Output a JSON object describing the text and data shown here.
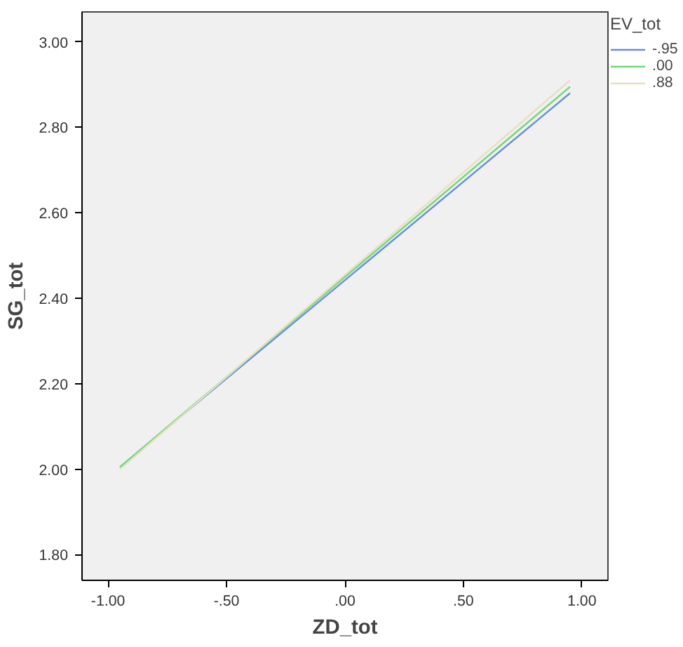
{
  "chart_data": {
    "type": "line",
    "xlabel": "ZD_tot",
    "ylabel": "SG_tot",
    "legend_title": "EV_tot",
    "legend": "top right",
    "x": [
      -0.95,
      0.95
    ],
    "xlim": [
      -1.11,
      1.11
    ],
    "ylim": [
      1.74,
      3.07
    ],
    "xticks": [
      {
        "value": -1,
        "label": "-1.00"
      },
      {
        "value": -0.5,
        "label": "-.50"
      },
      {
        "value": 0,
        "label": ".00"
      },
      {
        "value": 0.5,
        "label": ".50"
      },
      {
        "value": 1,
        "label": "1.00"
      }
    ],
    "yticks": [
      {
        "value": 1.8,
        "label": "1.80"
      },
      {
        "value": 2.0,
        "label": "2.00"
      },
      {
        "value": 2.2,
        "label": "2.20"
      },
      {
        "value": 2.4,
        "label": "2.40"
      },
      {
        "value": 2.6,
        "label": "2.60"
      },
      {
        "value": 2.8,
        "label": "2.80"
      },
      {
        "value": 3.0,
        "label": "3.00"
      }
    ],
    "series": [
      {
        "name": "-.95",
        "color": "#6a8fd6",
        "values": [
          2.005,
          2.88
        ]
      },
      {
        "name": ".00",
        "color": "#72d67e",
        "values": [
          2.005,
          2.895
        ]
      },
      {
        "name": ".88",
        "color": "#e6e0c0",
        "values": [
          2.0,
          2.91
        ]
      }
    ]
  }
}
